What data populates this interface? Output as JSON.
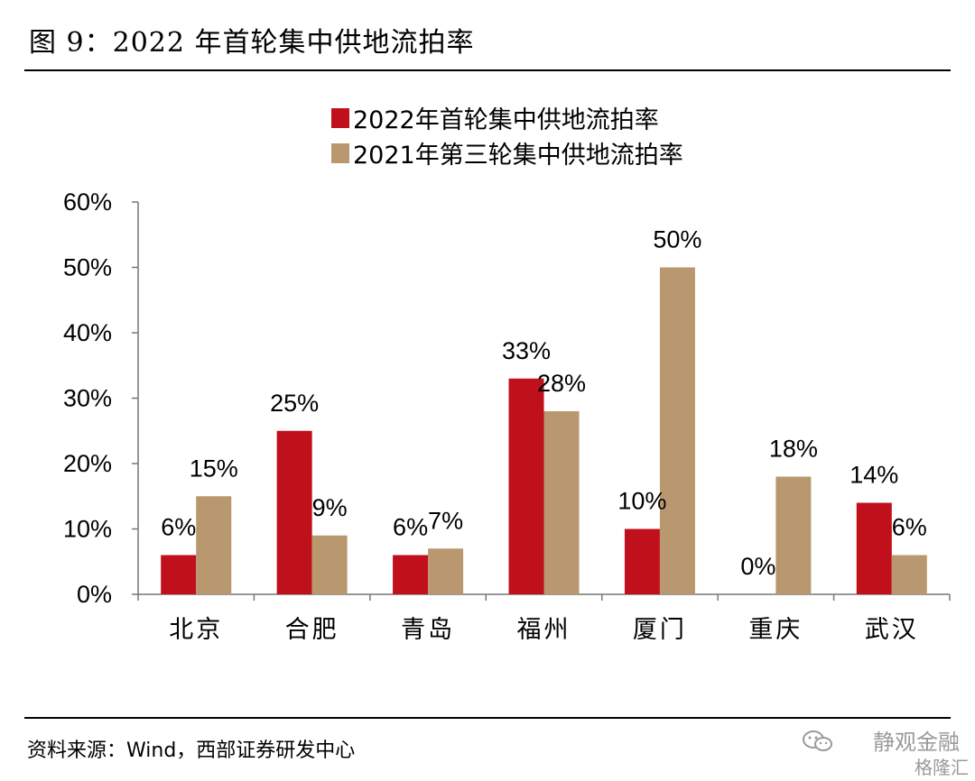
{
  "header": {
    "title": "图 9：2022 年首轮集中供地流拍率"
  },
  "footer": {
    "source": "资料来源：Wind，西部证券研发中心",
    "watermark_name": "静观金融",
    "watermark_brand": "格隆汇"
  },
  "chart_data": {
    "type": "bar",
    "categories": [
      "北京",
      "合肥",
      "青岛",
      "福州",
      "厦门",
      "重庆",
      "武汉"
    ],
    "series": [
      {
        "name": "2022年首轮集中供地流拍率",
        "color": "#c0101c",
        "values": [
          6,
          25,
          6,
          33,
          10,
          0,
          14
        ],
        "labels": [
          "6%",
          "25%",
          "6%",
          "33%",
          "10%",
          "0%",
          "14%"
        ]
      },
      {
        "name": "2021年第三轮集中供地流拍率",
        "color": "#b9986f",
        "values": [
          15,
          9,
          7,
          28,
          50,
          18,
          6
        ],
        "labels": [
          "15%",
          "9%",
          "7%",
          "28%",
          "50%",
          "18%",
          "6%"
        ]
      }
    ],
    "yticks": [
      "0%",
      "10%",
      "20%",
      "30%",
      "40%",
      "50%",
      "60%"
    ],
    "ylim": [
      0,
      60
    ],
    "grid": false,
    "legend_position": "top"
  }
}
